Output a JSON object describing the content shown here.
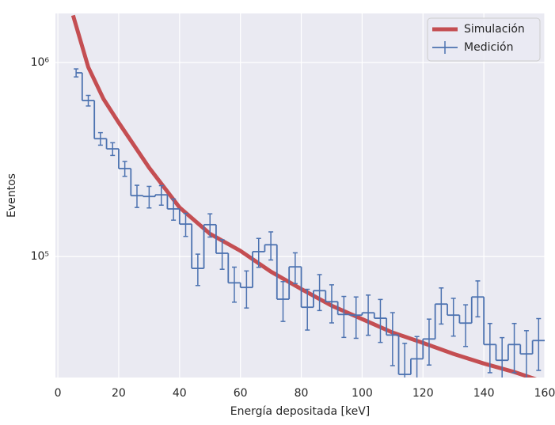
{
  "chart_data": {
    "type": "step",
    "xlabel": "Energía depositada [keV]",
    "ylabel": "Eventos",
    "xlim": [
      -0.8,
      160
    ],
    "xticks": [
      0,
      20,
      40,
      60,
      80,
      100,
      120,
      140,
      160
    ],
    "ylim": [
      23800,
      1790000
    ],
    "log_y": true,
    "yticks": [
      {
        "value": 100000,
        "label": "10⁵"
      },
      {
        "value": 1000000,
        "label": "10⁶"
      }
    ],
    "grid": true,
    "legend": "upper right",
    "series": [
      {
        "name": "Simulación",
        "kind": "line",
        "color": "#c44e52",
        "x": [
          5,
          10,
          15,
          20,
          30,
          40,
          50,
          60,
          70,
          80,
          90,
          100,
          110,
          120,
          130,
          140,
          150,
          160
        ],
        "values": [
          1750000,
          946000,
          649000,
          490000,
          287000,
          179000,
          131000,
          107000,
          83600,
          68000,
          55800,
          47600,
          40600,
          35900,
          31500,
          28100,
          25400,
          22500
        ]
      },
      {
        "name": "Medición",
        "kind": "step",
        "color": "#4c72b0",
        "x": [
          6,
          10,
          14,
          18,
          22,
          26,
          30,
          34,
          38,
          42,
          46,
          50,
          54,
          58,
          62,
          66,
          70,
          74,
          78,
          82,
          86,
          90,
          94,
          98,
          102,
          106,
          110,
          114,
          118,
          122,
          126,
          130,
          134,
          138,
          142,
          146,
          150,
          154,
          158
        ],
        "values": [
          885000,
          637000,
          405000,
          359000,
          284000,
          206000,
          204000,
          208000,
          176000,
          147000,
          86900,
          146000,
          104000,
          73200,
          69300,
          106000,
          115000,
          60300,
          88500,
          54800,
          66700,
          58500,
          50300,
          49900,
          51300,
          48100,
          39400,
          24700,
          29700,
          37600,
          56900,
          49900,
          45400,
          61900,
          35200,
          29200,
          35200,
          31500,
          36900
        ],
        "errors": [
          42000,
          40000,
          30000,
          27000,
          25000,
          27000,
          26000,
          24000,
          22000,
          20000,
          16000,
          20000,
          18000,
          15000,
          15000,
          18000,
          19000,
          14000,
          16000,
          13000,
          14000,
          13000,
          12000,
          12000,
          12000,
          12000,
          12000,
          11000,
          9000,
          10000,
          12000,
          11000,
          11000,
          13000,
          10000,
          9000,
          10000,
          10000,
          11000
        ]
      }
    ]
  }
}
